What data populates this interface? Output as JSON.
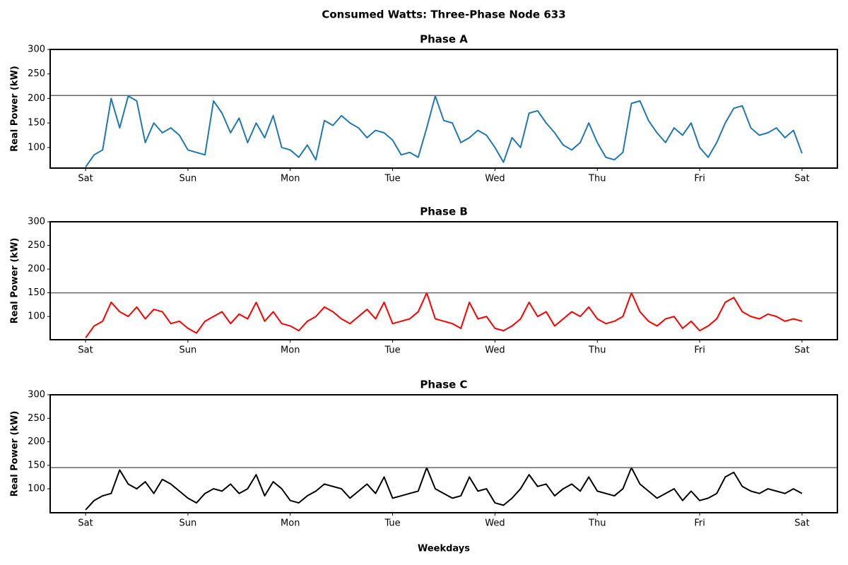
{
  "title": "Consumed Watts: Three-Phase Node 633",
  "chart_data": [
    {
      "type": "line",
      "title": "Phase A",
      "ylabel": "Real Power (kW)",
      "x": [
        0,
        2,
        4,
        6,
        8,
        10,
        12,
        14,
        16,
        18,
        20,
        22,
        24,
        26,
        28,
        30,
        32,
        34,
        36,
        38,
        40,
        42,
        44,
        46,
        48,
        50,
        52,
        54,
        56,
        58,
        60,
        62,
        64,
        66,
        68,
        70,
        72,
        74,
        76,
        78,
        80,
        82,
        84,
        86,
        88,
        90,
        92,
        94,
        96,
        98,
        100,
        102,
        104,
        106,
        108,
        110,
        112,
        114,
        116,
        118,
        120,
        122,
        124,
        126,
        128,
        130,
        132,
        134,
        136,
        138,
        140,
        142,
        144,
        146,
        148,
        150,
        152,
        154,
        156,
        158,
        160,
        162,
        164,
        166,
        168
      ],
      "series": [
        {
          "name": "Phase A",
          "color": "#1f77b4",
          "values": [
            60,
            85,
            95,
            200,
            140,
            205,
            195,
            110,
            150,
            130,
            140,
            125,
            95,
            90,
            85,
            195,
            170,
            130,
            160,
            110,
            150,
            120,
            165,
            100,
            95,
            80,
            105,
            75,
            155,
            145,
            165,
            150,
            140,
            120,
            135,
            130,
            115,
            85,
            90,
            80,
            140,
            205,
            155,
            150,
            110,
            120,
            135,
            125,
            100,
            70,
            120,
            100,
            170,
            175,
            150,
            130,
            105,
            95,
            110,
            150,
            110,
            80,
            75,
            90,
            190,
            195,
            155,
            130,
            110,
            140,
            125,
            150,
            100,
            80,
            110,
            150,
            180,
            185,
            140,
            125,
            130,
            140,
            120,
            135,
            88
          ]
        }
      ],
      "reference_line": 206,
      "xlim": [
        -8.3,
        176.3
      ],
      "xticks": [
        {
          "value": 0,
          "label": "Sat"
        },
        {
          "value": 24,
          "label": "Sun"
        },
        {
          "value": 48,
          "label": "Mon"
        },
        {
          "value": 72,
          "label": "Tue"
        },
        {
          "value": 96,
          "label": "Wed"
        },
        {
          "value": 120,
          "label": "Thu"
        },
        {
          "value": 144,
          "label": "Fri"
        },
        {
          "value": 168,
          "label": "Sat"
        }
      ],
      "ylim": [
        58,
        300
      ],
      "yticks": [
        100,
        150,
        200,
        250,
        300
      ]
    },
    {
      "type": "line",
      "title": "Phase B",
      "ylabel": "Real Power (kW)",
      "x": [
        0,
        2,
        4,
        6,
        8,
        10,
        12,
        14,
        16,
        18,
        20,
        22,
        24,
        26,
        28,
        30,
        32,
        34,
        36,
        38,
        40,
        42,
        44,
        46,
        48,
        50,
        52,
        54,
        56,
        58,
        60,
        62,
        64,
        66,
        68,
        70,
        72,
        74,
        76,
        78,
        80,
        82,
        84,
        86,
        88,
        90,
        92,
        94,
        96,
        98,
        100,
        102,
        104,
        106,
        108,
        110,
        112,
        114,
        116,
        118,
        120,
        122,
        124,
        126,
        128,
        130,
        132,
        134,
        136,
        138,
        140,
        142,
        144,
        146,
        148,
        150,
        152,
        154,
        156,
        158,
        160,
        162,
        164,
        166,
        168
      ],
      "series": [
        {
          "name": "Phase B",
          "color": "#ff0000",
          "values": [
            55,
            80,
            90,
            130,
            110,
            100,
            120,
            95,
            115,
            110,
            85,
            90,
            75,
            65,
            90,
            100,
            110,
            85,
            105,
            95,
            130,
            90,
            110,
            85,
            80,
            70,
            90,
            100,
            120,
            110,
            95,
            85,
            100,
            115,
            95,
            130,
            85,
            90,
            95,
            110,
            150,
            95,
            90,
            85,
            75,
            130,
            95,
            100,
            75,
            70,
            80,
            95,
            130,
            100,
            110,
            80,
            95,
            110,
            100,
            120,
            95,
            85,
            90,
            100,
            150,
            110,
            90,
            80,
            95,
            100,
            75,
            90,
            70,
            80,
            95,
            130,
            140,
            110,
            100,
            95,
            105,
            100,
            90,
            95,
            90
          ]
        }
      ],
      "reference_line": 150,
      "xlim": [
        -8.3,
        176.3
      ],
      "xticks": [
        {
          "value": 0,
          "label": "Sat"
        },
        {
          "value": 24,
          "label": "Sun"
        },
        {
          "value": 48,
          "label": "Mon"
        },
        {
          "value": 72,
          "label": "Tue"
        },
        {
          "value": 96,
          "label": "Wed"
        },
        {
          "value": 120,
          "label": "Thu"
        },
        {
          "value": 144,
          "label": "Fri"
        },
        {
          "value": 168,
          "label": "Sat"
        }
      ],
      "ylim": [
        51,
        300
      ],
      "yticks": [
        100,
        150,
        200,
        250,
        300
      ]
    },
    {
      "type": "line",
      "title": "Phase C",
      "ylabel": "Real Power (kW)",
      "xlabel": "Weekdays",
      "x": [
        0,
        2,
        4,
        6,
        8,
        10,
        12,
        14,
        16,
        18,
        20,
        22,
        24,
        26,
        28,
        30,
        32,
        34,
        36,
        38,
        40,
        42,
        44,
        46,
        48,
        50,
        52,
        54,
        56,
        58,
        60,
        62,
        64,
        66,
        68,
        70,
        72,
        74,
        76,
        78,
        80,
        82,
        84,
        86,
        88,
        90,
        92,
        94,
        96,
        98,
        100,
        102,
        104,
        106,
        108,
        110,
        112,
        114,
        116,
        118,
        120,
        122,
        124,
        126,
        128,
        130,
        132,
        134,
        136,
        138,
        140,
        142,
        144,
        146,
        148,
        150,
        152,
        154,
        156,
        158,
        160,
        162,
        164,
        166,
        168
      ],
      "series": [
        {
          "name": "Phase C",
          "color": "#000000",
          "values": [
            55,
            75,
            85,
            90,
            140,
            110,
            100,
            115,
            90,
            120,
            110,
            95,
            80,
            70,
            90,
            100,
            95,
            110,
            90,
            100,
            130,
            85,
            115,
            100,
            75,
            70,
            85,
            95,
            110,
            105,
            100,
            80,
            95,
            110,
            90,
            125,
            80,
            85,
            90,
            95,
            145,
            100,
            90,
            80,
            85,
            125,
            95,
            100,
            70,
            65,
            80,
            100,
            130,
            105,
            110,
            85,
            100,
            110,
            95,
            125,
            95,
            90,
            85,
            100,
            145,
            110,
            95,
            80,
            90,
            100,
            75,
            95,
            75,
            80,
            90,
            125,
            135,
            105,
            95,
            90,
            100,
            95,
            90,
            100,
            90
          ]
        }
      ],
      "reference_line": 145,
      "xlim": [
        -8.3,
        176.3
      ],
      "xticks": [
        {
          "value": 0,
          "label": "Sat"
        },
        {
          "value": 24,
          "label": "Sun"
        },
        {
          "value": 48,
          "label": "Mon"
        },
        {
          "value": 72,
          "label": "Tue"
        },
        {
          "value": 96,
          "label": "Wed"
        },
        {
          "value": 120,
          "label": "Thu"
        },
        {
          "value": 144,
          "label": "Fri"
        },
        {
          "value": 168,
          "label": "Sat"
        }
      ],
      "ylim": [
        49,
        300
      ],
      "yticks": [
        100,
        150,
        200,
        250,
        300
      ]
    }
  ]
}
